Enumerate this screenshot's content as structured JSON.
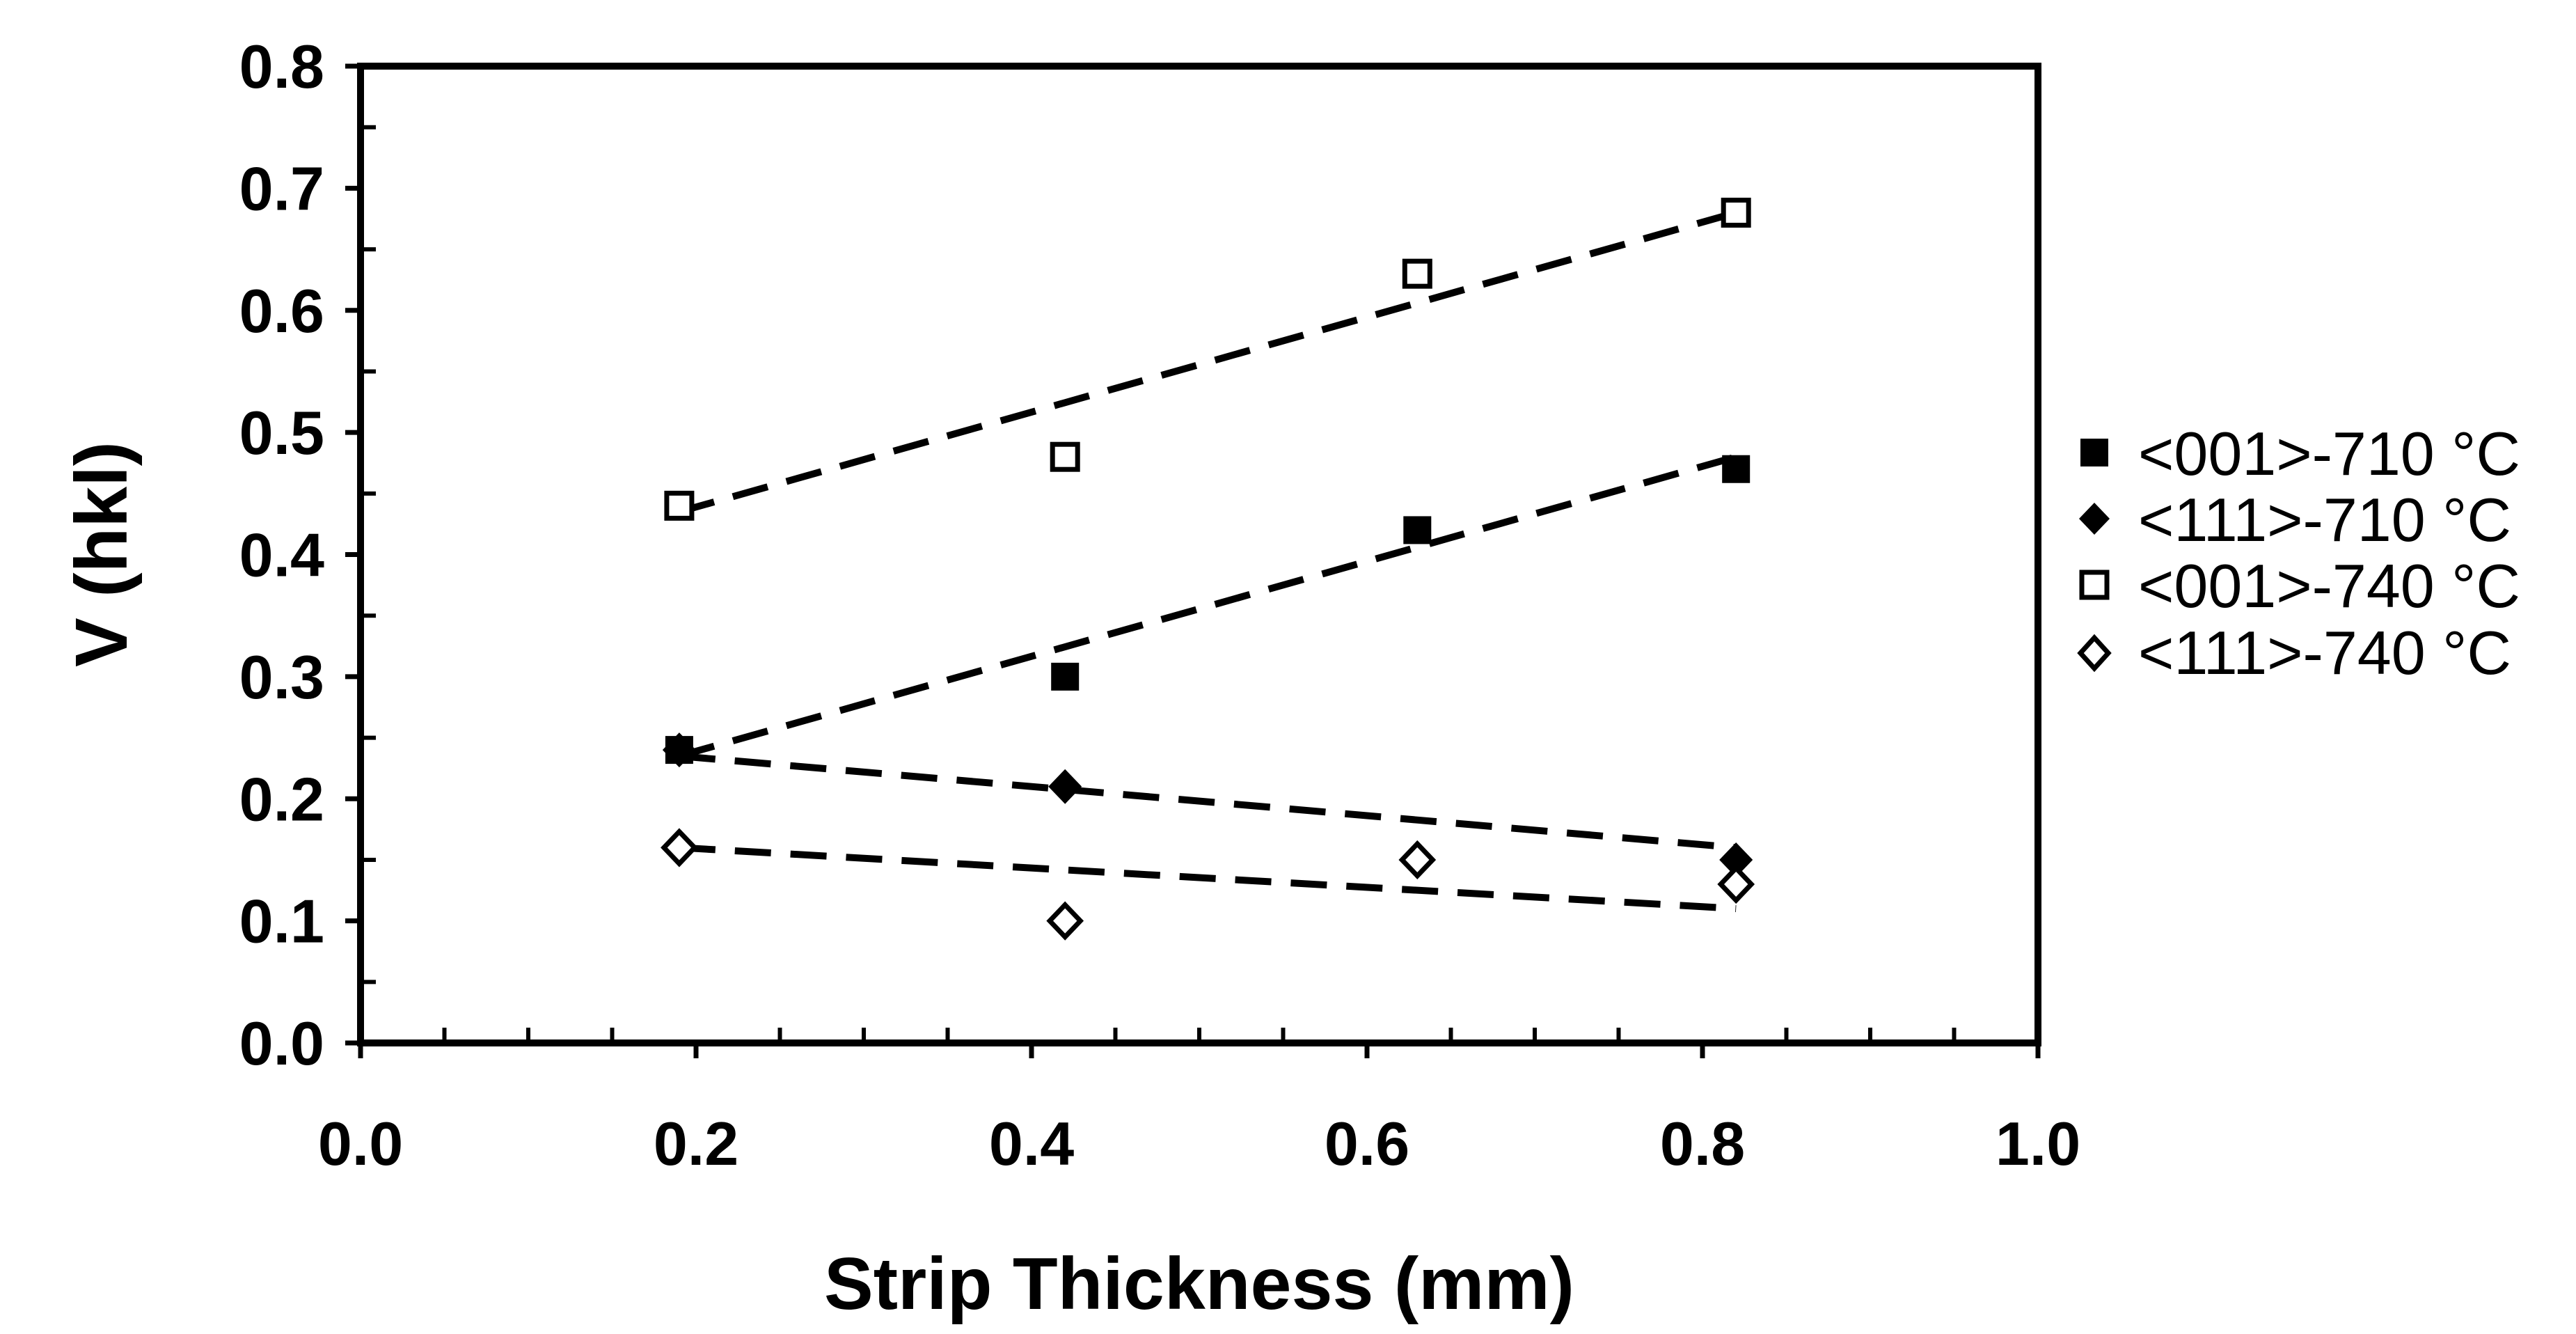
{
  "chart_data": {
    "type": "scatter",
    "title": "",
    "xlabel": "Strip Thickness (mm)",
    "ylabel": "V (hkl)",
    "xlim": [
      0.0,
      1.0
    ],
    "ylim": [
      0.0,
      0.8
    ],
    "x_ticks": [
      "0.0",
      "0.2",
      "0.4",
      "0.6",
      "0.8",
      "1.0"
    ],
    "y_ticks": [
      "0.0",
      "0.1",
      "0.2",
      "0.3",
      "0.4",
      "0.5",
      "0.6",
      "0.7",
      "0.8"
    ],
    "grid": false,
    "legend_position": "right",
    "series": [
      {
        "name": "<001>-710 °C",
        "marker": "square-filled",
        "x": [
          0.19,
          0.42,
          0.63,
          0.82
        ],
        "y": [
          0.24,
          0.3,
          0.42,
          0.47
        ],
        "trendline": [
          [
            0.19,
            0.235
          ],
          [
            0.82,
            0.48
          ]
        ]
      },
      {
        "name": "<111>-710 °C",
        "marker": "diamond-filled",
        "x": [
          0.19,
          0.42,
          0.82
        ],
        "y": [
          0.24,
          0.21,
          0.15
        ],
        "trendline": [
          [
            0.19,
            0.235
          ],
          [
            0.82,
            0.16
          ]
        ]
      },
      {
        "name": "<001>-740 °C",
        "marker": "square-open",
        "x": [
          0.19,
          0.42,
          0.63,
          0.82
        ],
        "y": [
          0.44,
          0.48,
          0.63,
          0.68
        ],
        "trendline": [
          [
            0.19,
            0.435
          ],
          [
            0.82,
            0.68
          ]
        ]
      },
      {
        "name": "<111>-740 °C",
        "marker": "diamond-open",
        "x": [
          0.19,
          0.42,
          0.63,
          0.82
        ],
        "y": [
          0.16,
          0.1,
          0.15,
          0.13
        ],
        "trendline": [
          [
            0.19,
            0.16
          ],
          [
            0.82,
            0.11
          ]
        ]
      }
    ]
  },
  "colors": {
    "ink": "#000000",
    "background": "#ffffff"
  }
}
